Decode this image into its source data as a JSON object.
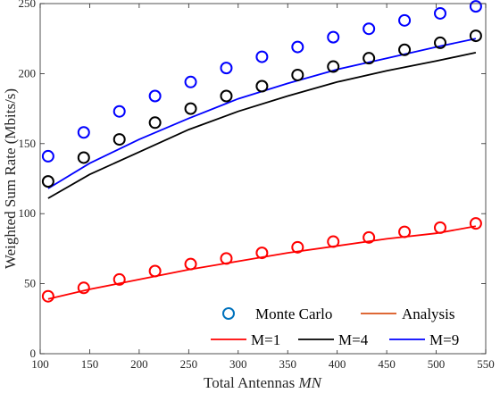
{
  "chart_data": {
    "type": "line",
    "xlabel": "Total Antennas",
    "xlabel_var": "MN",
    "ylabel": "Weighted Sum Rate (Mbits/s)",
    "xlim": [
      100,
      550
    ],
    "ylim": [
      0,
      250
    ],
    "xticks": [
      100,
      150,
      200,
      250,
      300,
      350,
      400,
      450,
      500,
      550
    ],
    "yticks": [
      0,
      50,
      100,
      150,
      200,
      250
    ],
    "grid": false,
    "legend_position": "bottom-right",
    "legend": {
      "monte_carlo": "Monte Carlo",
      "analysis": "Analysis",
      "m1": "M=1",
      "m4": "M=4",
      "m9": "M=9"
    },
    "marker_x": [
      108,
      144,
      180,
      216,
      252,
      288,
      324,
      360,
      396,
      432,
      468,
      504,
      540
    ],
    "series": [
      {
        "name": "M=1",
        "color": "#ff0000",
        "line": [
          [
            108,
            39
          ],
          [
            150,
            46
          ],
          [
            200,
            53
          ],
          [
            250,
            60
          ],
          [
            300,
            66
          ],
          [
            350,
            72
          ],
          [
            400,
            77
          ],
          [
            450,
            82
          ],
          [
            500,
            86
          ],
          [
            540,
            91
          ]
        ],
        "markers": [
          41,
          47,
          53,
          59,
          64,
          68,
          72,
          76,
          80,
          83,
          87,
          90,
          93
        ]
      },
      {
        "name": "M=4",
        "color": "#000000",
        "line": [
          [
            108,
            111
          ],
          [
            150,
            128
          ],
          [
            200,
            144
          ],
          [
            250,
            160
          ],
          [
            300,
            173
          ],
          [
            350,
            184
          ],
          [
            400,
            194
          ],
          [
            450,
            202
          ],
          [
            500,
            209
          ],
          [
            540,
            215
          ]
        ],
        "markers": [
          123,
          140,
          153,
          165,
          175,
          184,
          191,
          199,
          205,
          211,
          217,
          222,
          227
        ]
      },
      {
        "name": "M=9",
        "color": "#0000ff",
        "line": [
          [
            108,
            118
          ],
          [
            150,
            136
          ],
          [
            200,
            153
          ],
          [
            250,
            168
          ],
          [
            300,
            182
          ],
          [
            350,
            193
          ],
          [
            400,
            203
          ],
          [
            450,
            211
          ],
          [
            500,
            219
          ],
          [
            540,
            225
          ]
        ],
        "markers": [
          141,
          158,
          173,
          184,
          194,
          204,
          212,
          219,
          226,
          232,
          238,
          243,
          248
        ]
      }
    ],
    "legend_colors": {
      "monte_carlo": "#0072bd",
      "analysis": "#d95319"
    }
  }
}
